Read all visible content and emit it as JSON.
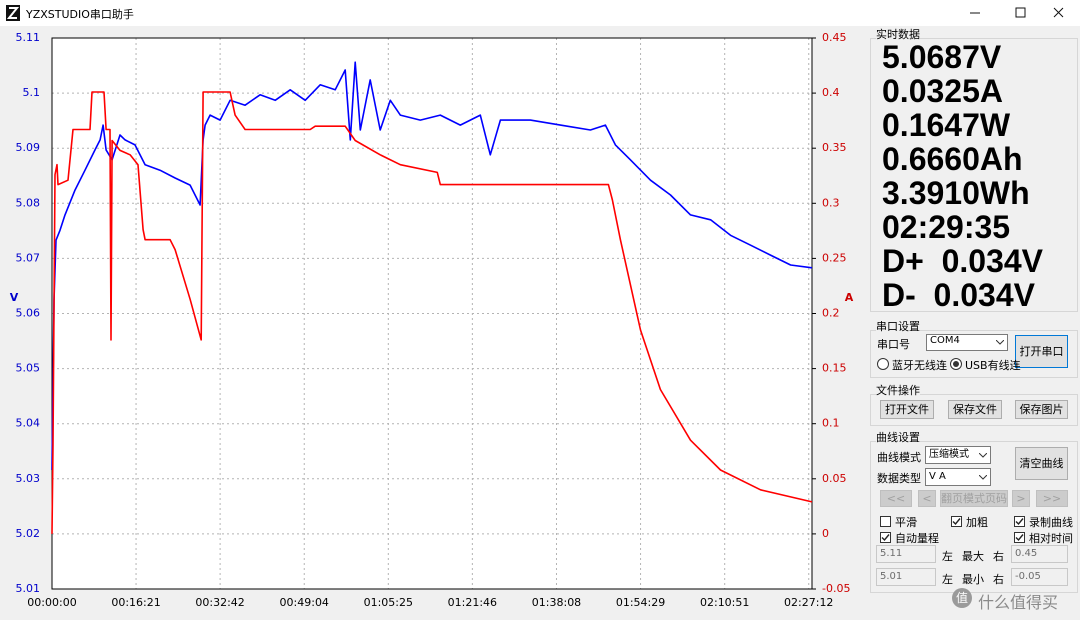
{
  "window": {
    "title": "YZXSTUDIO串口助手"
  },
  "chart_data": {
    "type": "line",
    "ylabel": "V",
    "y2label": "A",
    "grid": true,
    "xlim": [
      0,
      8870
    ],
    "xticks": [
      {
        "value": 0,
        "label": "00:00:00"
      },
      {
        "value": 981,
        "label": "00:16:21"
      },
      {
        "value": 1962,
        "label": "00:32:42"
      },
      {
        "value": 2944,
        "label": "00:49:04"
      },
      {
        "value": 3925,
        "label": "01:05:25"
      },
      {
        "value": 4906,
        "label": "01:21:46"
      },
      {
        "value": 5888,
        "label": "01:38:08"
      },
      {
        "value": 6869,
        "label": "01:54:29"
      },
      {
        "value": 7851,
        "label": "02:10:51"
      },
      {
        "value": 8832,
        "label": "02:27:12"
      }
    ],
    "ylim": [
      5.01,
      5.11
    ],
    "yticks": [
      5.01,
      5.02,
      5.03,
      5.04,
      5.05,
      5.06,
      5.07,
      5.08,
      5.09,
      5.1,
      5.11
    ],
    "y2lim": [
      -0.05,
      0.45
    ],
    "y2ticks": [
      -0.05,
      0,
      0.05,
      0.1,
      0.15,
      0.2,
      0.25,
      0.3,
      0.35,
      0.4,
      0.45
    ],
    "series": [
      {
        "color": "#0000ff",
        "x": [
          0,
          23,
          47,
          93,
          152,
          269,
          385,
          502,
          561,
          596,
          631,
          701,
          794,
          853,
          969,
          1086,
          1261,
          1437,
          1612,
          1729,
          1764,
          1787,
          1845,
          1962,
          2079,
          2254,
          2429,
          2605,
          2780,
          2955,
          3130,
          3305,
          3422,
          3481,
          3539,
          3598,
          3714,
          3831,
          3948,
          4065,
          4298,
          4532,
          4765,
          4999,
          5116,
          5233,
          5583,
          5933,
          6284,
          6459,
          6576,
          6751,
          6985,
          7218,
          7452,
          7686,
          7919,
          8153,
          8386,
          8620,
          8870
        ],
        "values": [
          5.0316,
          5.0624,
          5.0733,
          5.0751,
          5.0779,
          5.0824,
          5.086,
          5.0897,
          5.0915,
          5.0942,
          5.0897,
          5.0879,
          5.0924,
          5.0915,
          5.0906,
          5.087,
          5.086,
          5.0846,
          5.0833,
          5.0797,
          5.0915,
          5.0942,
          5.096,
          5.0951,
          5.0987,
          5.0978,
          5.0997,
          5.0987,
          5.1006,
          5.0987,
          5.1015,
          5.1006,
          5.1042,
          5.0915,
          5.1056,
          5.0933,
          5.1024,
          5.0933,
          5.0987,
          5.096,
          5.0951,
          5.096,
          5.0942,
          5.096,
          5.0888,
          5.0951,
          5.0951,
          5.0942,
          5.0933,
          5.0942,
          5.0906,
          5.0879,
          5.0842,
          5.0815,
          5.0779,
          5.077,
          5.0742,
          5.0724,
          5.0706,
          5.0688,
          5.0683
        ]
      },
      {
        "color": "#ff0000",
        "axis": "y2",
        "x": [
          0,
          12,
          35,
          58,
          70,
          187,
          245,
          444,
          467,
          607,
          631,
          677,
          689,
          701,
          794,
          911,
          1004,
          1063,
          1086,
          1378,
          1437,
          1612,
          1741,
          1764,
          2079,
          2137,
          2254,
          3013,
          3072,
          3422,
          3539,
          3831,
          4065,
          4497,
          4532,
          5700,
          6494,
          6541,
          6634,
          6868,
          7101,
          7452,
          7802,
          8269,
          8870
        ],
        "values": [
          0.0,
          0.081,
          0.326,
          0.335,
          0.317,
          0.321,
          0.367,
          0.367,
          0.401,
          0.401,
          0.367,
          0.367,
          0.176,
          0.357,
          0.348,
          0.344,
          0.335,
          0.276,
          0.267,
          0.267,
          0.258,
          0.213,
          0.176,
          0.401,
          0.401,
          0.38,
          0.367,
          0.367,
          0.37,
          0.37,
          0.357,
          0.344,
          0.335,
          0.328,
          0.317,
          0.317,
          0.317,
          0.303,
          0.267,
          0.185,
          0.131,
          0.085,
          0.058,
          0.04,
          0.029
        ]
      }
    ]
  },
  "realtime": {
    "title": "实时数据",
    "readings": [
      "5.0687V",
      "0.0325A",
      "0.1647W",
      "0.6660Ah",
      "3.3910Wh",
      "02:29:35",
      "D+  0.034V",
      "D-  0.034V"
    ]
  },
  "serial": {
    "title": "串口设置",
    "port_label": "串口号",
    "port": "COM4",
    "open_button": "打开串口",
    "options": [
      {
        "label": "蓝牙无线连",
        "checked": false
      },
      {
        "label": "USB有线连",
        "checked": true
      }
    ]
  },
  "file_ops": {
    "title": "文件操作",
    "buttons": [
      "打开文件",
      "保存文件",
      "保存图片"
    ]
  },
  "curve": {
    "title": "曲线设置",
    "mode_label": "曲线模式",
    "mode": "压缩模式",
    "type_label": "数据类型",
    "type_value": "V A",
    "clear_button": "清空曲线",
    "nav": [
      "<<",
      "<",
      "翻页模式页码",
      ">",
      ">>"
    ],
    "checks": [
      {
        "label": "平滑",
        "checked": false
      },
      {
        "label": "加粗",
        "checked": true
      },
      {
        "label": "录制曲线",
        "checked": true
      },
      {
        "label": "自动量程",
        "checked": true
      },
      {
        "label": "相对时间",
        "checked": true
      }
    ],
    "range_rows": [
      {
        "left": "5.11",
        "side_left": "左",
        "label": "最大",
        "side_right": "右",
        "right": "0.45"
      },
      {
        "left": "5.01",
        "side_left": "左",
        "label": "最小",
        "side_right": "右",
        "right": "-0.05"
      }
    ]
  },
  "watermark": {
    "icon": "值",
    "text": "什么值得买"
  }
}
